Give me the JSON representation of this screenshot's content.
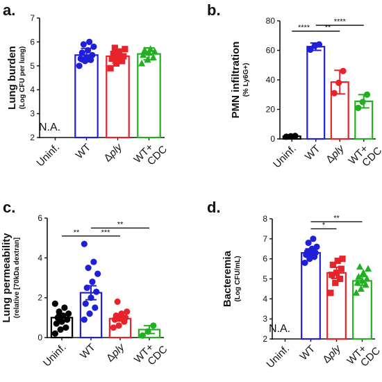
{
  "figure": {
    "colors": {
      "Uninf.": "#000000",
      "WT": "#1f1fd8",
      "ply": "#e8232a",
      "WT+CDC": "#20b020"
    }
  },
  "chart_data": [
    {
      "panel": "a.",
      "type": "bar",
      "ylabel": "Lung burden",
      "ylabel_sub": "(Log CFU per lung)",
      "ylim": [
        2,
        7
      ],
      "yticks": [
        2,
        3,
        4,
        5,
        6,
        7
      ],
      "categories": [
        "Uninf.",
        "WT",
        "Δply",
        "WT+ CDC"
      ],
      "category_colors": [
        "#000000",
        "#1f1fd8",
        "#e8232a",
        "#20b020"
      ],
      "values": [
        null,
        5.45,
        5.4,
        5.5
      ],
      "errors": [
        null,
        0.28,
        0.28,
        0.25
      ],
      "na_label": "N.A.",
      "points": [
        [],
        [
          5.0,
          5.2,
          5.25,
          5.3,
          5.35,
          5.45,
          5.55,
          5.65,
          5.8,
          5.9,
          6.0
        ],
        [
          4.9,
          5.1,
          5.2,
          5.3,
          5.35,
          5.4,
          5.5,
          5.6,
          5.7,
          5.75
        ],
        [
          5.1,
          5.25,
          5.35,
          5.45,
          5.55,
          5.6,
          5.65,
          5.7
        ]
      ],
      "marker": [
        "circle",
        "circle",
        "square",
        "triangle"
      ],
      "significance": []
    },
    {
      "panel": "b.",
      "type": "bar",
      "ylabel": "PMN infiltration",
      "ylabel_sub": "(% Ly6G+)",
      "ylim": [
        0,
        80
      ],
      "yticks": [
        0,
        20,
        40,
        60,
        80
      ],
      "categories": [
        "Uninf.",
        "WT",
        "Δply",
        "WT+ CDC"
      ],
      "category_colors": [
        "#000000",
        "#1f1fd8",
        "#e8232a",
        "#20b020"
      ],
      "values": [
        1.8,
        62.5,
        38.5,
        25.5
      ],
      "errors": [
        0.5,
        2.5,
        8,
        4.5
      ],
      "na_label": "",
      "points": [
        [
          1.5,
          1.8,
          2.0
        ],
        [
          60.5,
          63,
          64
        ],
        [
          31,
          38,
          46
        ],
        [
          21,
          25,
          30
        ]
      ],
      "marker": [
        "circle",
        "circle",
        "circle",
        "circle"
      ],
      "significance": [
        {
          "from": 0,
          "to": 1,
          "label": "****",
          "y": 73
        },
        {
          "from": 1,
          "to": 2,
          "label": "**",
          "y": 73
        },
        {
          "from": 1,
          "to": 3,
          "label": "****",
          "y": 77
        }
      ]
    },
    {
      "panel": "c.",
      "type": "bar",
      "ylabel": "Lung permeability",
      "ylabel_sub": "(relative [70kDa dextran]",
      "ylim": [
        0,
        6
      ],
      "yticks": [
        0,
        2,
        4,
        6
      ],
      "categories": [
        "Uninf.",
        "WT",
        "Δply",
        "WT+ CDC"
      ],
      "category_colors": [
        "#000000",
        "#1f1fd8",
        "#e8232a",
        "#20b020"
      ],
      "values": [
        1.0,
        2.25,
        0.95,
        0.4
      ],
      "errors": [
        0.15,
        0.35,
        0.12,
        0.2
      ],
      "na_label": "",
      "points": [
        [
          0.2,
          0.4,
          0.5,
          0.7,
          0.8,
          0.9,
          1.0,
          1.1,
          1.2,
          1.3,
          1.5,
          1.7
        ],
        [
          0.9,
          1.2,
          1.5,
          1.7,
          2.0,
          2.3,
          2.5,
          2.8,
          3.2,
          3.5,
          3.8,
          4.7
        ],
        [
          0.5,
          0.6,
          0.8,
          0.9,
          0.95,
          1.0,
          1.1,
          1.2,
          1.3,
          1.8
        ],
        [
          0.1,
          0.3,
          0.6
        ]
      ],
      "marker": [
        "circle",
        "circle",
        "circle",
        "circle"
      ],
      "significance": [
        {
          "from": 0,
          "to": 1,
          "label": "**",
          "y": 5.1
        },
        {
          "from": 1,
          "to": 2,
          "label": "***",
          "y": 5.1
        },
        {
          "from": 1,
          "to": 3,
          "label": "**",
          "y": 5.5
        }
      ]
    },
    {
      "panel": "d.",
      "type": "bar",
      "ylabel": "Bacteremia",
      "ylabel_sub": "(Log CFU/mL)",
      "ylim": [
        2,
        8
      ],
      "yticks": [
        2,
        3,
        4,
        5,
        6,
        7,
        8
      ],
      "categories": [
        "Uninf.",
        "WT",
        "Δply",
        "WT+ CDC"
      ],
      "category_colors": [
        "#000000",
        "#1f1fd8",
        "#e8232a",
        "#20b020"
      ],
      "values": [
        null,
        6.3,
        5.3,
        4.9
      ],
      "errors": [
        null,
        0.2,
        0.28,
        0.22
      ],
      "na_label": "N.A.",
      "points": [
        [],
        [
          5.8,
          6.0,
          6.1,
          6.2,
          6.25,
          6.3,
          6.35,
          6.5,
          6.6,
          6.8,
          7.0
        ],
        [
          4.3,
          4.8,
          5.0,
          5.2,
          5.3,
          5.5,
          5.7,
          5.9,
          6.0
        ],
        [
          4.3,
          4.5,
          4.7,
          4.8,
          4.9,
          5.0,
          5.1,
          5.3,
          5.5,
          5.6
        ]
      ],
      "marker": [
        "circle",
        "circle",
        "square",
        "triangle"
      ],
      "significance": [
        {
          "from": 1,
          "to": 2,
          "label": "*",
          "y": 7.5
        },
        {
          "from": 1,
          "to": 3,
          "label": "**",
          "y": 7.85
        }
      ]
    }
  ]
}
